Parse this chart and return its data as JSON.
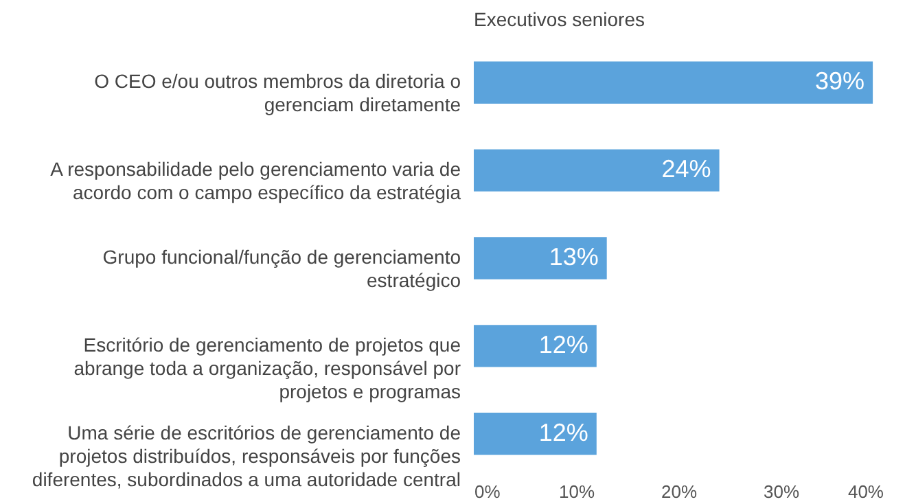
{
  "chart_data": {
    "type": "bar",
    "orientation": "horizontal",
    "title": "Executivos seniores",
    "categories": [
      "O CEO e/ou outros membros da diretoria o gerenciam diretamente",
      "A responsabilidade pelo gerenciamento varia de acordo com o campo específico da estratégia",
      "Grupo funcional/função de gerenciamento estratégico",
      "Escritório de gerenciamento de projetos que abrange toda a organização, responsável por projetos e programas",
      "Uma série de escritórios de gerenciamento de projetos distribuídos, responsáveis por funções diferentes, subordinados a uma autoridade central"
    ],
    "values": [
      39,
      24,
      13,
      12,
      12
    ],
    "color": "#5ba3dc",
    "value_labels": [
      "39%",
      "24%",
      "13%",
      "12%",
      "12%"
    ],
    "xlim": [
      0,
      40
    ],
    "xticks": [
      {
        "value": 0,
        "label": "0%"
      },
      {
        "value": 10,
        "label": "10%"
      },
      {
        "value": 20,
        "label": "20%"
      },
      {
        "value": 30,
        "label": "30%"
      },
      {
        "value": 40,
        "label": "40%"
      }
    ],
    "grid": false
  }
}
